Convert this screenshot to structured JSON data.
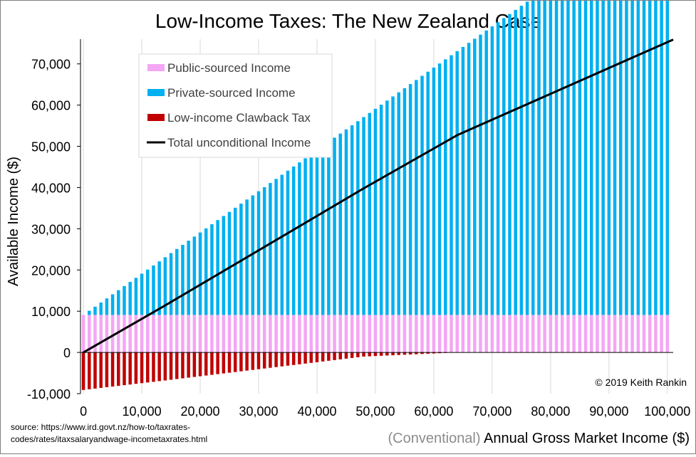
{
  "chart_data": {
    "type": "bar",
    "title": "Low-Income Taxes: The New Zealand Case",
    "xlabel_prefix": "(Conventional)",
    "xlabel": "Annual Gross Market Income ($)",
    "ylabel": "Available Income  ($)",
    "ylim": [
      -10000,
      76000
    ],
    "xlim": [
      -500,
      101000
    ],
    "yticks": [
      -10000,
      0,
      10000,
      20000,
      30000,
      40000,
      50000,
      60000,
      70000
    ],
    "ytick_labels": [
      "-10,000",
      "0",
      "10,000",
      "20,000",
      "30,000",
      "40,000",
      "50,000",
      "60,000",
      "70,000"
    ],
    "xticks": [
      0,
      10000,
      20000,
      30000,
      40000,
      50000,
      60000,
      70000,
      80000,
      90000,
      100000
    ],
    "xtick_labels": [
      "0",
      "10,000",
      "20,000",
      "30,000",
      "40,000",
      "50,000",
      "60,000",
      "70,000",
      "80,000",
      "90,000",
      "100,000"
    ],
    "grid": "vertical",
    "legend_position": "top-left",
    "bar_step": 1000,
    "bar_range": [
      0,
      100000
    ],
    "series": [
      {
        "name": "Public-sourced Income",
        "color": "#f4a6f4",
        "value": 9100,
        "note": "constant across all incomes"
      },
      {
        "name": "Private-sourced Income",
        "color": "#00b0f0",
        "formula": "equal to gross market income"
      },
      {
        "name": "Low-income Clawback Tax",
        "color": "#c00000",
        "points": [
          [
            0,
            -9100
          ],
          [
            14000,
            -6800
          ],
          [
            48000,
            -1000
          ],
          [
            64000,
            0
          ]
        ]
      },
      {
        "name": "Total unconditional Income",
        "color": "#000000",
        "points": [
          [
            0,
            0
          ],
          [
            14000,
            11400
          ],
          [
            48000,
            39800
          ],
          [
            64000,
            52700
          ],
          [
            101000,
            75900
          ]
        ]
      }
    ]
  },
  "copyright": "© 2019 Keith Rankin",
  "source": "source: https://www.ird.govt.nz/how-to/taxrates-\ncodes/rates/itaxsalaryandwage-incometaxrates.html"
}
